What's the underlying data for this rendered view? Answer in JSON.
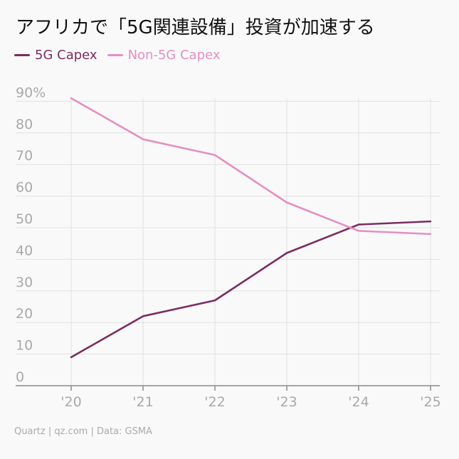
{
  "title": "アフリカで「5G関連設備」投資が加速する",
  "source": "Quartz | qz.com | Data: GSMA",
  "colors": {
    "series_5g": "#7b2d62",
    "series_non5g": "#e48fc4",
    "grid": "#e1e1e1",
    "tick": "#a9a9a9",
    "axis": "#8a8a8a"
  },
  "chart_data": {
    "type": "line",
    "title": "アフリカで「5G関連設備」投資が加速する",
    "xlabel": "",
    "ylabel": "",
    "x": [
      "'20",
      "'21",
      "'22",
      "'23",
      "'24",
      "'25"
    ],
    "ylim": [
      0,
      90
    ],
    "yticks": [
      0,
      10,
      20,
      30,
      40,
      50,
      60,
      70,
      80,
      90
    ],
    "ytick_labels": [
      "0",
      "10",
      "20",
      "30",
      "40",
      "50",
      "60",
      "70",
      "80",
      "90%"
    ],
    "grid": true,
    "legend_position": "top-left",
    "series": [
      {
        "name": "5G Capex",
        "color": "#7b2d62",
        "values": [
          9,
          22,
          27,
          42,
          51,
          52
        ]
      },
      {
        "name": "Non-5G Capex",
        "color": "#e48fc4",
        "values": [
          91,
          78,
          73,
          58,
          49,
          48
        ]
      }
    ]
  }
}
